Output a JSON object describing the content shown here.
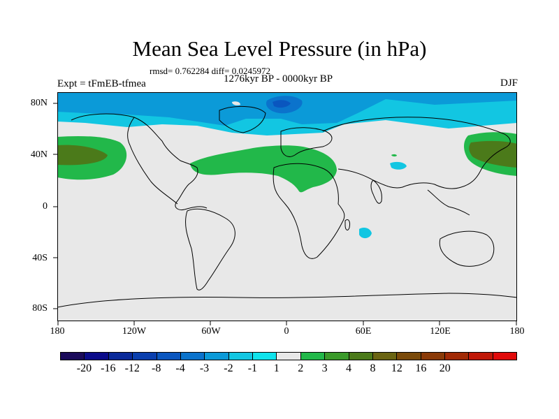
{
  "title": "Mean Sea Level Pressure (in hPa)",
  "stats": "rmsd= 0.762284 diff= 0.0245972",
  "left_label": "Expt = tFmEB-tfmea",
  "center_label": "1276kyr BP - 0000kyr BP",
  "right_label": "DJF",
  "y_ticks": [
    "80N",
    "40N",
    "0",
    "40S",
    "80S"
  ],
  "x_ticks": [
    "180",
    "120W",
    "60W",
    "0",
    "60E",
    "120E",
    "180"
  ],
  "colorbar": {
    "labels": [
      "-20",
      "-16",
      "-12",
      "-8",
      "-4",
      "-3",
      "-2",
      "-1",
      "1",
      "2",
      "3",
      "4",
      "8",
      "12",
      "16",
      "20"
    ],
    "colors": [
      "#1a0a5a",
      "#0b0b8a",
      "#0a2a9a",
      "#0a3fae",
      "#0a56bf",
      "#0b73cc",
      "#0b9ad8",
      "#12c6e2",
      "#0fe3ec",
      "#e8e8e8",
      "#22b84a",
      "#3a9a2a",
      "#4b7a1a",
      "#6a6412",
      "#7a4a0a",
      "#8a3a08",
      "#a12a06",
      "#c01808",
      "#e00a0a"
    ]
  },
  "legend_colors": {
    "land": "#e8e8e8",
    "coast": "#000000"
  }
}
